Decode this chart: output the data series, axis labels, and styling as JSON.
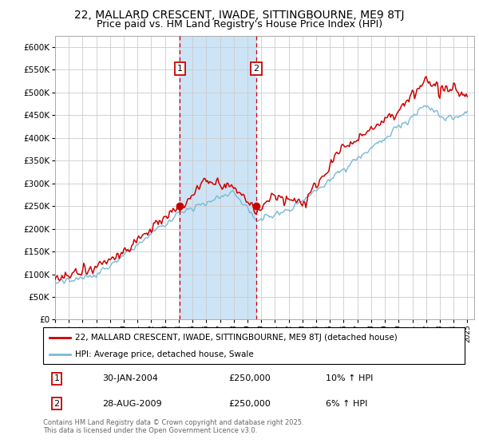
{
  "title": "22, MALLARD CRESCENT, IWADE, SITTINGBOURNE, ME9 8TJ",
  "subtitle": "Price paid vs. HM Land Registry's House Price Index (HPI)",
  "x_start_year": 1995,
  "x_end_year": 2025,
  "ylim": [
    0,
    625000
  ],
  "yticks": [
    0,
    50000,
    100000,
    150000,
    200000,
    250000,
    300000,
    350000,
    400000,
    450000,
    500000,
    550000,
    600000
  ],
  "sale1_date": 2004.08,
  "sale1_price": 250000,
  "sale1_label": "1",
  "sale2_date": 2009.65,
  "sale2_price": 250000,
  "sale2_label": "2",
  "annotation1": [
    "1",
    "30-JAN-2004",
    "£250,000",
    "10% ↑ HPI"
  ],
  "annotation2": [
    "2",
    "28-AUG-2009",
    "£250,000",
    "6% ↑ HPI"
  ],
  "legend1": "22, MALLARD CRESCENT, IWADE, SITTINGBOURNE, ME9 8TJ (detached house)",
  "legend2": "HPI: Average price, detached house, Swale",
  "hpi_color": "#7ab8d9",
  "price_color": "#cc0000",
  "shade_color": "#cce4f5",
  "vline_color": "#cc0000",
  "grid_color": "#cccccc",
  "footer": "Contains HM Land Registry data © Crown copyright and database right 2025.\nThis data is licensed under the Open Government Licence v3.0.",
  "background_color": "#ffffff",
  "title_fontsize": 10,
  "subtitle_fontsize": 9
}
